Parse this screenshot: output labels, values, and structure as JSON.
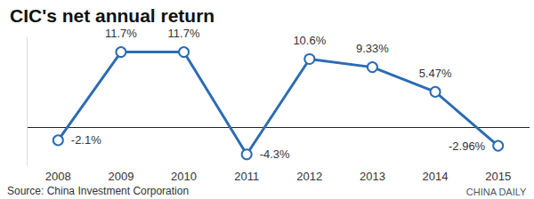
{
  "chart_data": {
    "type": "line",
    "title": "CIC's net annual return",
    "categories": [
      "2008",
      "2009",
      "2010",
      "2011",
      "2012",
      "2013",
      "2014",
      "2015"
    ],
    "values": [
      -2.1,
      11.7,
      11.7,
      -4.3,
      10.6,
      9.33,
      5.47,
      -2.96
    ],
    "value_labels": [
      "-2.1%",
      "11.7%",
      "11.7%",
      "-4.3%",
      "10.6%",
      "9.33%",
      "5.47%",
      "-2.96%"
    ],
    "data_labels": true,
    "color": "#2b6cb3",
    "marker": "circle",
    "ylim": [
      -6,
      14
    ],
    "yticks": [
      0
    ],
    "tick_labels": "x",
    "grid": false,
    "annotations": [
      "Source: China Investment Corporation",
      "CHINA DAILY"
    ]
  }
}
